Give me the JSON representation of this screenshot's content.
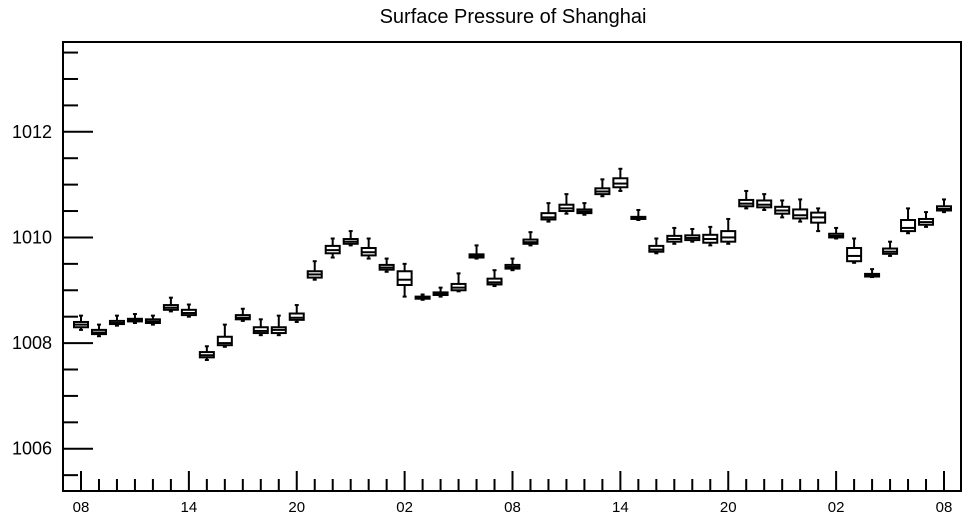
{
  "chart_data": {
    "type": "box",
    "title": "Surface Pressure of Shanghai",
    "xlabel": "",
    "ylabel": "",
    "ylim": [
      1005.2,
      1013.7
    ],
    "yticks": [
      {
        "value": 1006,
        "label": "1006"
      },
      {
        "value": 1008,
        "label": "1008"
      },
      {
        "value": 1010,
        "label": "1010"
      },
      {
        "value": 1012,
        "label": "1012"
      }
    ],
    "xlim": [
      7.0,
      56.0
    ],
    "xticks": [
      {
        "x": 8,
        "label": "08"
      },
      {
        "x": 14,
        "label": "14"
      },
      {
        "x": 20,
        "label": "20"
      },
      {
        "x": 26,
        "label": "02"
      },
      {
        "x": 32,
        "label": "08"
      },
      {
        "x": 38,
        "label": "14"
      },
      {
        "x": 44,
        "label": "20"
      },
      {
        "x": 50,
        "label": "02"
      },
      {
        "x": 56,
        "label": "08"
      }
    ],
    "boxes": [
      {
        "x": 8,
        "min": 1008.25,
        "q1": 1008.3,
        "median": 1008.35,
        "q3": 1008.4,
        "max": 1008.52
      },
      {
        "x": 9,
        "min": 1008.13,
        "q1": 1008.17,
        "median": 1008.2,
        "q3": 1008.25,
        "max": 1008.35
      },
      {
        "x": 10,
        "min": 1008.33,
        "q1": 1008.36,
        "median": 1008.38,
        "q3": 1008.42,
        "max": 1008.52
      },
      {
        "x": 11,
        "min": 1008.38,
        "q1": 1008.41,
        "median": 1008.43,
        "q3": 1008.46,
        "max": 1008.55
      },
      {
        "x": 12,
        "min": 1008.35,
        "q1": 1008.38,
        "median": 1008.41,
        "q3": 1008.45,
        "max": 1008.52
      },
      {
        "x": 13,
        "min": 1008.6,
        "q1": 1008.63,
        "median": 1008.67,
        "q3": 1008.72,
        "max": 1008.86
      },
      {
        "x": 14,
        "min": 1008.5,
        "q1": 1008.53,
        "median": 1008.57,
        "q3": 1008.63,
        "max": 1008.73
      },
      {
        "x": 15,
        "min": 1007.68,
        "q1": 1007.73,
        "median": 1007.77,
        "q3": 1007.83,
        "max": 1007.94
      },
      {
        "x": 16,
        "min": 1007.93,
        "q1": 1007.96,
        "median": 1008.0,
        "q3": 1008.12,
        "max": 1008.35
      },
      {
        "x": 17,
        "min": 1008.42,
        "q1": 1008.45,
        "median": 1008.48,
        "q3": 1008.53,
        "max": 1008.65
      },
      {
        "x": 18,
        "min": 1008.15,
        "q1": 1008.19,
        "median": 1008.23,
        "q3": 1008.3,
        "max": 1008.45
      },
      {
        "x": 19,
        "min": 1008.15,
        "q1": 1008.19,
        "median": 1008.25,
        "q3": 1008.3,
        "max": 1008.52
      },
      {
        "x": 20,
        "min": 1008.4,
        "q1": 1008.44,
        "median": 1008.48,
        "q3": 1008.56,
        "max": 1008.72
      },
      {
        "x": 21,
        "min": 1009.2,
        "q1": 1009.24,
        "median": 1009.3,
        "q3": 1009.36,
        "max": 1009.55
      },
      {
        "x": 22,
        "min": 1009.62,
        "q1": 1009.7,
        "median": 1009.76,
        "q3": 1009.84,
        "max": 1009.98
      },
      {
        "x": 23,
        "min": 1009.85,
        "q1": 1009.88,
        "median": 1009.92,
        "q3": 1009.97,
        "max": 1010.12
      },
      {
        "x": 24,
        "min": 1009.6,
        "q1": 1009.66,
        "median": 1009.72,
        "q3": 1009.8,
        "max": 1009.98
      },
      {
        "x": 25,
        "min": 1009.35,
        "q1": 1009.39,
        "median": 1009.43,
        "q3": 1009.48,
        "max": 1009.6
      },
      {
        "x": 26,
        "min": 1008.88,
        "q1": 1009.1,
        "median": 1009.2,
        "q3": 1009.36,
        "max": 1009.5
      },
      {
        "x": 27,
        "min": 1008.82,
        "q1": 1008.84,
        "median": 1008.86,
        "q3": 1008.88,
        "max": 1008.92
      },
      {
        "x": 28,
        "min": 1008.88,
        "q1": 1008.91,
        "median": 1008.93,
        "q3": 1008.96,
        "max": 1009.05
      },
      {
        "x": 29,
        "min": 1008.98,
        "q1": 1009.0,
        "median": 1009.05,
        "q3": 1009.12,
        "max": 1009.32
      },
      {
        "x": 30,
        "min": 1009.6,
        "q1": 1009.62,
        "median": 1009.65,
        "q3": 1009.68,
        "max": 1009.85
      },
      {
        "x": 31,
        "min": 1009.08,
        "q1": 1009.11,
        "median": 1009.15,
        "q3": 1009.22,
        "max": 1009.38
      },
      {
        "x": 32,
        "min": 1009.38,
        "q1": 1009.41,
        "median": 1009.44,
        "q3": 1009.48,
        "max": 1009.6
      },
      {
        "x": 33,
        "min": 1009.85,
        "q1": 1009.88,
        "median": 1009.91,
        "q3": 1009.96,
        "max": 1010.1
      },
      {
        "x": 34,
        "min": 1010.3,
        "q1": 1010.34,
        "median": 1010.38,
        "q3": 1010.46,
        "max": 1010.65
      },
      {
        "x": 35,
        "min": 1010.45,
        "q1": 1010.5,
        "median": 1010.55,
        "q3": 1010.62,
        "max": 1010.82
      },
      {
        "x": 36,
        "min": 1010.43,
        "q1": 1010.46,
        "median": 1010.49,
        "q3": 1010.53,
        "max": 1010.65
      },
      {
        "x": 37,
        "min": 1010.78,
        "q1": 1010.82,
        "median": 1010.87,
        "q3": 1010.93,
        "max": 1011.1
      },
      {
        "x": 38,
        "min": 1010.88,
        "q1": 1010.95,
        "median": 1011.02,
        "q3": 1011.12,
        "max": 1011.3
      },
      {
        "x": 39,
        "min": 1010.33,
        "q1": 1010.35,
        "median": 1010.37,
        "q3": 1010.39,
        "max": 1010.52
      },
      {
        "x": 40,
        "min": 1009.7,
        "q1": 1009.73,
        "median": 1009.77,
        "q3": 1009.84,
        "max": 1009.98
      },
      {
        "x": 41,
        "min": 1009.88,
        "q1": 1009.92,
        "median": 1009.97,
        "q3": 1010.03,
        "max": 1010.18
      },
      {
        "x": 42,
        "min": 1009.92,
        "q1": 1009.95,
        "median": 1009.99,
        "q3": 1010.04,
        "max": 1010.16
      },
      {
        "x": 43,
        "min": 1009.85,
        "q1": 1009.9,
        "median": 1009.97,
        "q3": 1010.05,
        "max": 1010.2
      },
      {
        "x": 44,
        "min": 1009.88,
        "q1": 1009.92,
        "median": 1010.0,
        "q3": 1010.12,
        "max": 1010.35
      },
      {
        "x": 45,
        "min": 1010.55,
        "q1": 1010.59,
        "median": 1010.64,
        "q3": 1010.71,
        "max": 1010.88
      },
      {
        "x": 46,
        "min": 1010.52,
        "q1": 1010.57,
        "median": 1010.62,
        "q3": 1010.7,
        "max": 1010.82
      },
      {
        "x": 47,
        "min": 1010.38,
        "q1": 1010.45,
        "median": 1010.51,
        "q3": 1010.58,
        "max": 1010.7
      },
      {
        "x": 48,
        "min": 1010.3,
        "q1": 1010.36,
        "median": 1010.42,
        "q3": 1010.53,
        "max": 1010.72
      },
      {
        "x": 49,
        "min": 1010.12,
        "q1": 1010.28,
        "median": 1010.38,
        "q3": 1010.47,
        "max": 1010.55
      },
      {
        "x": 50,
        "min": 1009.98,
        "q1": 1010.0,
        "median": 1010.03,
        "q3": 1010.07,
        "max": 1010.18
      },
      {
        "x": 51,
        "min": 1009.52,
        "q1": 1009.55,
        "median": 1009.65,
        "q3": 1009.8,
        "max": 1009.98
      },
      {
        "x": 52,
        "min": 1009.25,
        "q1": 1009.26,
        "median": 1009.28,
        "q3": 1009.31,
        "max": 1009.4
      },
      {
        "x": 53,
        "min": 1009.65,
        "q1": 1009.69,
        "median": 1009.73,
        "q3": 1009.79,
        "max": 1009.92
      },
      {
        "x": 54,
        "min": 1010.08,
        "q1": 1010.12,
        "median": 1010.18,
        "q3": 1010.33,
        "max": 1010.55
      },
      {
        "x": 55,
        "min": 1010.2,
        "q1": 1010.24,
        "median": 1010.29,
        "q3": 1010.35,
        "max": 1010.48
      },
      {
        "x": 56,
        "min": 1010.48,
        "q1": 1010.51,
        "median": 1010.54,
        "q3": 1010.59,
        "max": 1010.72
      }
    ],
    "grid": false,
    "legend": "none"
  }
}
